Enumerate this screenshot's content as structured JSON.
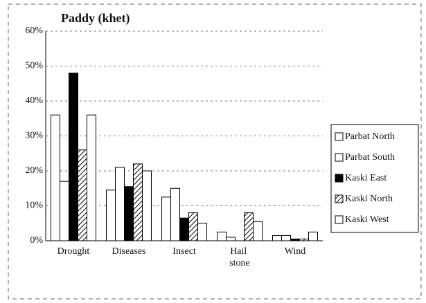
{
  "chart_data": {
    "type": "bar",
    "title": "Paddy (khet)",
    "categories": [
      "Drought",
      "Diseases",
      "Insect",
      "Hail stone",
      "Wind"
    ],
    "series": [
      {
        "name": "Parbat North",
        "color": "#ffffff",
        "values": [
          36,
          14.5,
          12.5,
          2.5,
          1.5
        ]
      },
      {
        "name": "Parbat South",
        "color": "#ffffff",
        "values": [
          17,
          21,
          15,
          1,
          1.5
        ]
      },
      {
        "name": "Kaski East",
        "color": "#000000",
        "values": [
          48,
          15.5,
          6.5,
          0,
          0.5
        ]
      },
      {
        "name": "Kaski North",
        "color": "#ffffff",
        "pattern": "diagonal",
        "values": [
          26,
          22,
          8,
          8,
          0.5
        ]
      },
      {
        "name": "Kaski West",
        "color": "#ffffff",
        "values": [
          36,
          20,
          5,
          5.5,
          2.5
        ]
      }
    ],
    "ylim": [
      0,
      60
    ],
    "yticks": [
      {
        "value": 0,
        "label": "0%"
      },
      {
        "value": 10,
        "label": "10%"
      },
      {
        "value": 20,
        "label": "20%"
      },
      {
        "value": 30,
        "label": "30%"
      },
      {
        "value": 40,
        "label": "40%"
      },
      {
        "value": 50,
        "label": "50%"
      },
      {
        "value": 60,
        "label": "60%"
      }
    ],
    "grid": true,
    "legend": "right"
  }
}
